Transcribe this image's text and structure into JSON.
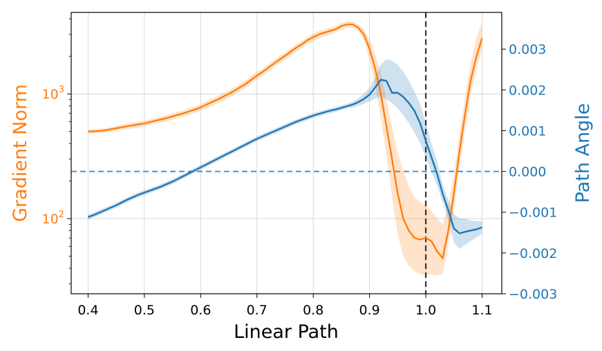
{
  "chart_data": {
    "type": "line",
    "xlabel": "Linear Path",
    "ylabel_left": "Gradient Norm",
    "ylabel_right": "Path Angle",
    "left_axis_color": "#ff7f0e",
    "right_axis_color": "#1f77b4",
    "left_scale": "log",
    "xlim": [
      0.37,
      1.135
    ],
    "ylim_left": [
      25,
      4500
    ],
    "ylim_right": [
      -0.003,
      0.0039
    ],
    "x_ticks": [
      "0.4",
      "0.5",
      "0.6",
      "0.7",
      "0.8",
      "0.9",
      "1.0",
      "1.1"
    ],
    "x_tick_values": [
      0.4,
      0.5,
      0.6,
      0.7,
      0.8,
      0.9,
      1.0,
      1.1
    ],
    "left_major_ticks": [
      {
        "value": 100,
        "base": "10",
        "exp": "2"
      },
      {
        "value": 1000,
        "base": "10",
        "exp": "3"
      }
    ],
    "right_ticks": [
      "0.003",
      "0.002",
      "0.001",
      "0.000",
      "−0.001",
      "−0.002",
      "−0.003"
    ],
    "right_tick_values": [
      0.003,
      0.002,
      0.001,
      0.0,
      -0.001,
      -0.002,
      -0.003
    ],
    "grid": true,
    "vline": {
      "x": 1.0,
      "color": "#333333",
      "style": "dashed"
    },
    "hline": {
      "y_right": 0.0,
      "color": "#1f77b4",
      "style": "dashed"
    },
    "series": [
      {
        "axis": "left",
        "color": "#ff7f0e",
        "x": [
          0.4,
          0.41,
          0.42,
          0.43,
          0.44,
          0.45,
          0.46,
          0.47,
          0.48,
          0.49,
          0.5,
          0.51,
          0.52,
          0.53,
          0.54,
          0.55,
          0.56,
          0.57,
          0.58,
          0.59,
          0.6,
          0.61,
          0.62,
          0.63,
          0.64,
          0.65,
          0.66,
          0.67,
          0.68,
          0.69,
          0.7,
          0.71,
          0.72,
          0.73,
          0.74,
          0.75,
          0.76,
          0.77,
          0.78,
          0.79,
          0.8,
          0.81,
          0.82,
          0.83,
          0.84,
          0.85,
          0.86,
          0.87,
          0.88,
          0.89,
          0.9,
          0.91,
          0.92,
          0.93,
          0.94,
          0.95,
          0.96,
          0.97,
          0.98,
          0.99,
          1.0,
          1.01,
          1.02,
          1.03,
          1.04,
          1.05,
          1.06,
          1.07,
          1.08,
          1.09,
          1.1
        ],
        "y": [
          500,
          500,
          505,
          510,
          520,
          530,
          540,
          550,
          560,
          570,
          580,
          595,
          610,
          625,
          640,
          660,
          680,
          700,
          725,
          750,
          780,
          820,
          860,
          900,
          950,
          1000,
          1060,
          1130,
          1200,
          1300,
          1400,
          1500,
          1620,
          1750,
          1880,
          2020,
          2180,
          2350,
          2500,
          2700,
          2850,
          3000,
          3100,
          3200,
          3300,
          3500,
          3600,
          3600,
          3400,
          3000,
          2300,
          1600,
          1000,
          550,
          300,
          160,
          100,
          80,
          70,
          68,
          70,
          66,
          55,
          48,
          80,
          160,
          350,
          700,
          1300,
          2000,
          2800
        ],
        "band_low": [
          480,
          480,
          485,
          490,
          500,
          505,
          515,
          520,
          530,
          540,
          550,
          565,
          580,
          590,
          605,
          620,
          640,
          660,
          680,
          705,
          730,
          765,
          800,
          840,
          885,
          930,
          985,
          1050,
          1115,
          1200,
          1300,
          1400,
          1510,
          1630,
          1750,
          1880,
          2030,
          2190,
          2340,
          2520,
          2660,
          2800,
          2900,
          3000,
          3100,
          3280,
          3380,
          3380,
          3200,
          2700,
          1900,
          1200,
          650,
          320,
          150,
          75,
          50,
          42,
          38,
          36,
          35,
          36,
          35,
          36,
          60,
          120,
          260,
          520,
          1000,
          1600,
          2300
        ],
        "band_high": [
          520,
          520,
          525,
          530,
          540,
          555,
          565,
          580,
          590,
          600,
          610,
          625,
          640,
          660,
          675,
          700,
          720,
          740,
          770,
          795,
          830,
          875,
          920,
          960,
          1015,
          1070,
          1135,
          1210,
          1285,
          1400,
          1500,
          1600,
          1730,
          1870,
          2010,
          2160,
          2330,
          2510,
          2660,
          2880,
          3040,
          3200,
          3300,
          3400,
          3500,
          3720,
          3820,
          3820,
          3600,
          3300,
          2700,
          2100,
          1500,
          900,
          550,
          340,
          240,
          180,
          150,
          135,
          130,
          115,
          100,
          90,
          130,
          230,
          480,
          950,
          1800,
          2800,
          3800
        ]
      },
      {
        "axis": "right",
        "color": "#1f77b4",
        "x": [
          0.4,
          0.41,
          0.42,
          0.43,
          0.44,
          0.45,
          0.46,
          0.47,
          0.48,
          0.49,
          0.5,
          0.51,
          0.52,
          0.53,
          0.54,
          0.55,
          0.56,
          0.57,
          0.58,
          0.59,
          0.6,
          0.61,
          0.62,
          0.63,
          0.64,
          0.65,
          0.66,
          0.67,
          0.68,
          0.69,
          0.7,
          0.71,
          0.72,
          0.73,
          0.74,
          0.75,
          0.76,
          0.77,
          0.78,
          0.79,
          0.8,
          0.81,
          0.82,
          0.83,
          0.84,
          0.85,
          0.86,
          0.87,
          0.88,
          0.89,
          0.9,
          0.91,
          0.92,
          0.93,
          0.94,
          0.95,
          0.96,
          0.97,
          0.98,
          0.99,
          1.0,
          1.01,
          1.02,
          1.03,
          1.04,
          1.05,
          1.06,
          1.07,
          1.08,
          1.09,
          1.1
        ],
        "y": [
          -0.00112,
          -0.00107,
          -0.00101,
          -0.00095,
          -0.00089,
          -0.00083,
          -0.00076,
          -0.00069,
          -0.00063,
          -0.00057,
          -0.00052,
          -0.00047,
          -0.00042,
          -0.00037,
          -0.00031,
          -0.00025,
          -0.00018,
          -0.00011,
          -4e-05,
          3e-05,
          0.0001,
          0.00017,
          0.00024,
          0.00031,
          0.00038,
          0.00045,
          0.00052,
          0.00059,
          0.00066,
          0.00073,
          0.0008,
          0.00086,
          0.00092,
          0.00098,
          0.00104,
          0.0011,
          0.00116,
          0.00122,
          0.00127,
          0.00132,
          0.00137,
          0.00141,
          0.00145,
          0.00149,
          0.00152,
          0.00156,
          0.0016,
          0.00164,
          0.0017,
          0.00178,
          0.00188,
          0.00206,
          0.00225,
          0.00222,
          0.00193,
          0.00193,
          0.00183,
          0.00168,
          0.00148,
          0.00118,
          0.00075,
          0.00035,
          -5e-05,
          -0.00055,
          -0.00095,
          -0.0014,
          -0.00152,
          -0.00148,
          -0.00145,
          -0.00142,
          -0.00137
        ],
        "band_low": [
          -0.00118,
          -0.00113,
          -0.00107,
          -0.00101,
          -0.00095,
          -0.00089,
          -0.00082,
          -0.00075,
          -0.00069,
          -0.00063,
          -0.00058,
          -0.00053,
          -0.00048,
          -0.00043,
          -0.00037,
          -0.00031,
          -0.00024,
          -0.00017,
          -0.0001,
          -3e-05,
          4e-05,
          0.00011,
          0.00018,
          0.00025,
          0.00032,
          0.00039,
          0.00046,
          0.00053,
          0.0006,
          0.00067,
          0.00074,
          0.0008,
          0.00086,
          0.00092,
          0.00098,
          0.00104,
          0.0011,
          0.00116,
          0.00121,
          0.00126,
          0.00131,
          0.00135,
          0.00139,
          0.00143,
          0.00146,
          0.0015,
          0.00154,
          0.00157,
          0.00161,
          0.00166,
          0.00172,
          0.00178,
          0.00184,
          0.00176,
          0.00168,
          0.00155,
          0.00138,
          0.00118,
          0.00095,
          0.0007,
          0.00035,
          0.0,
          -0.00035,
          -0.00075,
          -0.0012,
          -0.00175,
          -0.0019,
          -0.0018,
          -0.0017,
          -0.00162,
          -0.00152
        ],
        "band_high": [
          -0.00106,
          -0.00101,
          -0.00095,
          -0.00089,
          -0.00083,
          -0.00077,
          -0.0007,
          -0.00063,
          -0.00057,
          -0.00051,
          -0.00046,
          -0.00041,
          -0.00036,
          -0.00031,
          -0.00025,
          -0.00019,
          -0.00012,
          -5e-05,
          2e-05,
          9e-05,
          0.00016,
          0.00023,
          0.0003,
          0.00037,
          0.00044,
          0.00051,
          0.00058,
          0.00065,
          0.00072,
          0.00079,
          0.00086,
          0.00092,
          0.00098,
          0.00104,
          0.0011,
          0.00116,
          0.00122,
          0.00128,
          0.00133,
          0.00138,
          0.00143,
          0.00147,
          0.00151,
          0.00155,
          0.00158,
          0.00162,
          0.00166,
          0.00171,
          0.00179,
          0.0019,
          0.00205,
          0.00232,
          0.00262,
          0.00275,
          0.00272,
          0.00262,
          0.00245,
          0.00222,
          0.00196,
          0.00165,
          0.00118,
          0.0007,
          0.00025,
          -0.00032,
          -0.0007,
          -0.00105,
          -0.00115,
          -0.00116,
          -0.0012,
          -0.00122,
          -0.00122
        ]
      }
    ]
  }
}
